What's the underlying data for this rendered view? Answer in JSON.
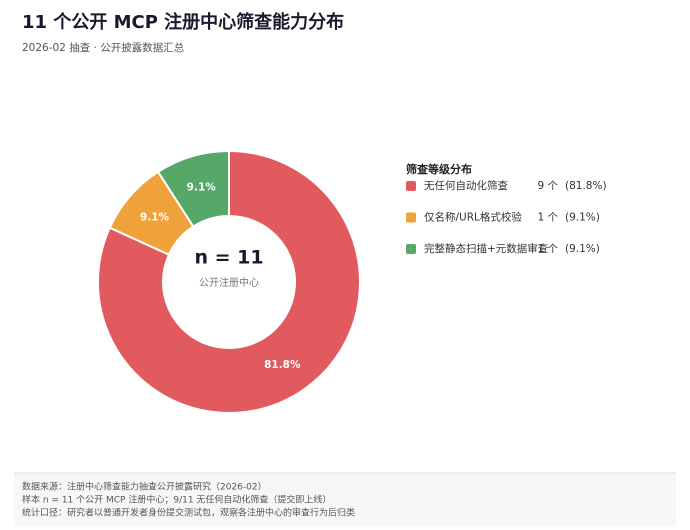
{
  "chart_data": {
    "type": "pie",
    "donut": true,
    "title": "11 个公开 MCP 注册中心筛查能力分布",
    "subtitle": "2026-02 抽查 · 公开披露数据汇总",
    "center_text": "n = 11",
    "center_subtext": "公开注册中心",
    "legend_title": "筛查等级分布",
    "categories": [
      "无任何自动化筛查",
      "仅名称/URL格式校验",
      "完整静态扫描+元数据审查"
    ],
    "values": [
      81.8,
      9.1,
      9.1
    ],
    "value_labels": [
      "81.8%",
      "9.1%",
      "9.1%"
    ],
    "colors": [
      "#e05a5e",
      "#f0a23a",
      "#55a868"
    ],
    "count_labels": [
      "9 个",
      "1 个",
      "1 个"
    ],
    "legend_percent_labels": [
      "(81.8%)",
      "(9.1%)",
      "(9.1%)"
    ],
    "footer": [
      "数据来源：注册中心筛查能力抽查公开披露研究（2026-02）",
      "样本 n = 11 个公开 MCP 注册中心；9/11 无任何自动化筛查（提交即上线）",
      "统计口径：研究者以普通开发者身份提交测试包，观察各注册中心的审查行为后归类"
    ]
  }
}
